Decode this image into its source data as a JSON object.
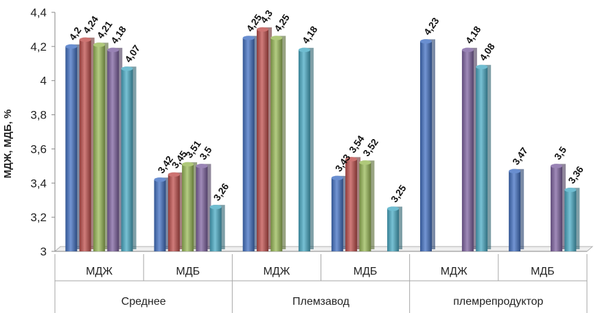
{
  "chart_data": {
    "type": "bar",
    "ylabel": "МДЖ, МДБ, %",
    "ylim": [
      3,
      4.4
    ],
    "yticks": [
      "3",
      "3,2",
      "3,4",
      "3,6",
      "3,8",
      "4",
      "4,2",
      "4,4"
    ],
    "groups": [
      {
        "label": "Среднее",
        "categories": [
          {
            "label": "МДЖ",
            "values": [
              4.2,
              4.24,
              4.21,
              4.18,
              4.07
            ],
            "labels": [
              "4,2",
              "4,24",
              "4,21",
              "4,18",
              "4,07"
            ]
          },
          {
            "label": "МДБ",
            "values": [
              3.42,
              3.45,
              3.51,
              3.5,
              3.26
            ],
            "labels": [
              "3,42",
              "3,45",
              "3,51",
              "3,5",
              "3,26"
            ]
          }
        ]
      },
      {
        "label": "Племзавод",
        "categories": [
          {
            "label": "МДЖ",
            "values": [
              4.25,
              4.3,
              4.25,
              null,
              4.18
            ],
            "labels": [
              "4,25",
              "4,3",
              "4,25",
              null,
              "4,18"
            ]
          },
          {
            "label": "МДБ",
            "values": [
              3.43,
              3.54,
              3.52,
              null,
              3.25
            ],
            "labels": [
              "3,43",
              "3,54",
              "3,52",
              null,
              "3,25"
            ]
          }
        ]
      },
      {
        "label": "племрепродуктор",
        "categories": [
          {
            "label": "МДЖ",
            "values": [
              4.23,
              null,
              null,
              4.18,
              4.08
            ],
            "labels": [
              "4,23",
              null,
              null,
              "4,18",
              "4,08"
            ]
          },
          {
            "label": "МДБ",
            "values": [
              3.47,
              null,
              null,
              3.5,
              3.36
            ],
            "labels": [
              "3,47",
              null,
              null,
              "3,5",
              "3,36"
            ]
          }
        ]
      }
    ],
    "series_colors": [
      "#4472c4",
      "#c0504d",
      "#9bbb59",
      "#8064a2",
      "#4bacc6"
    ],
    "grid": false,
    "legend": "none"
  }
}
